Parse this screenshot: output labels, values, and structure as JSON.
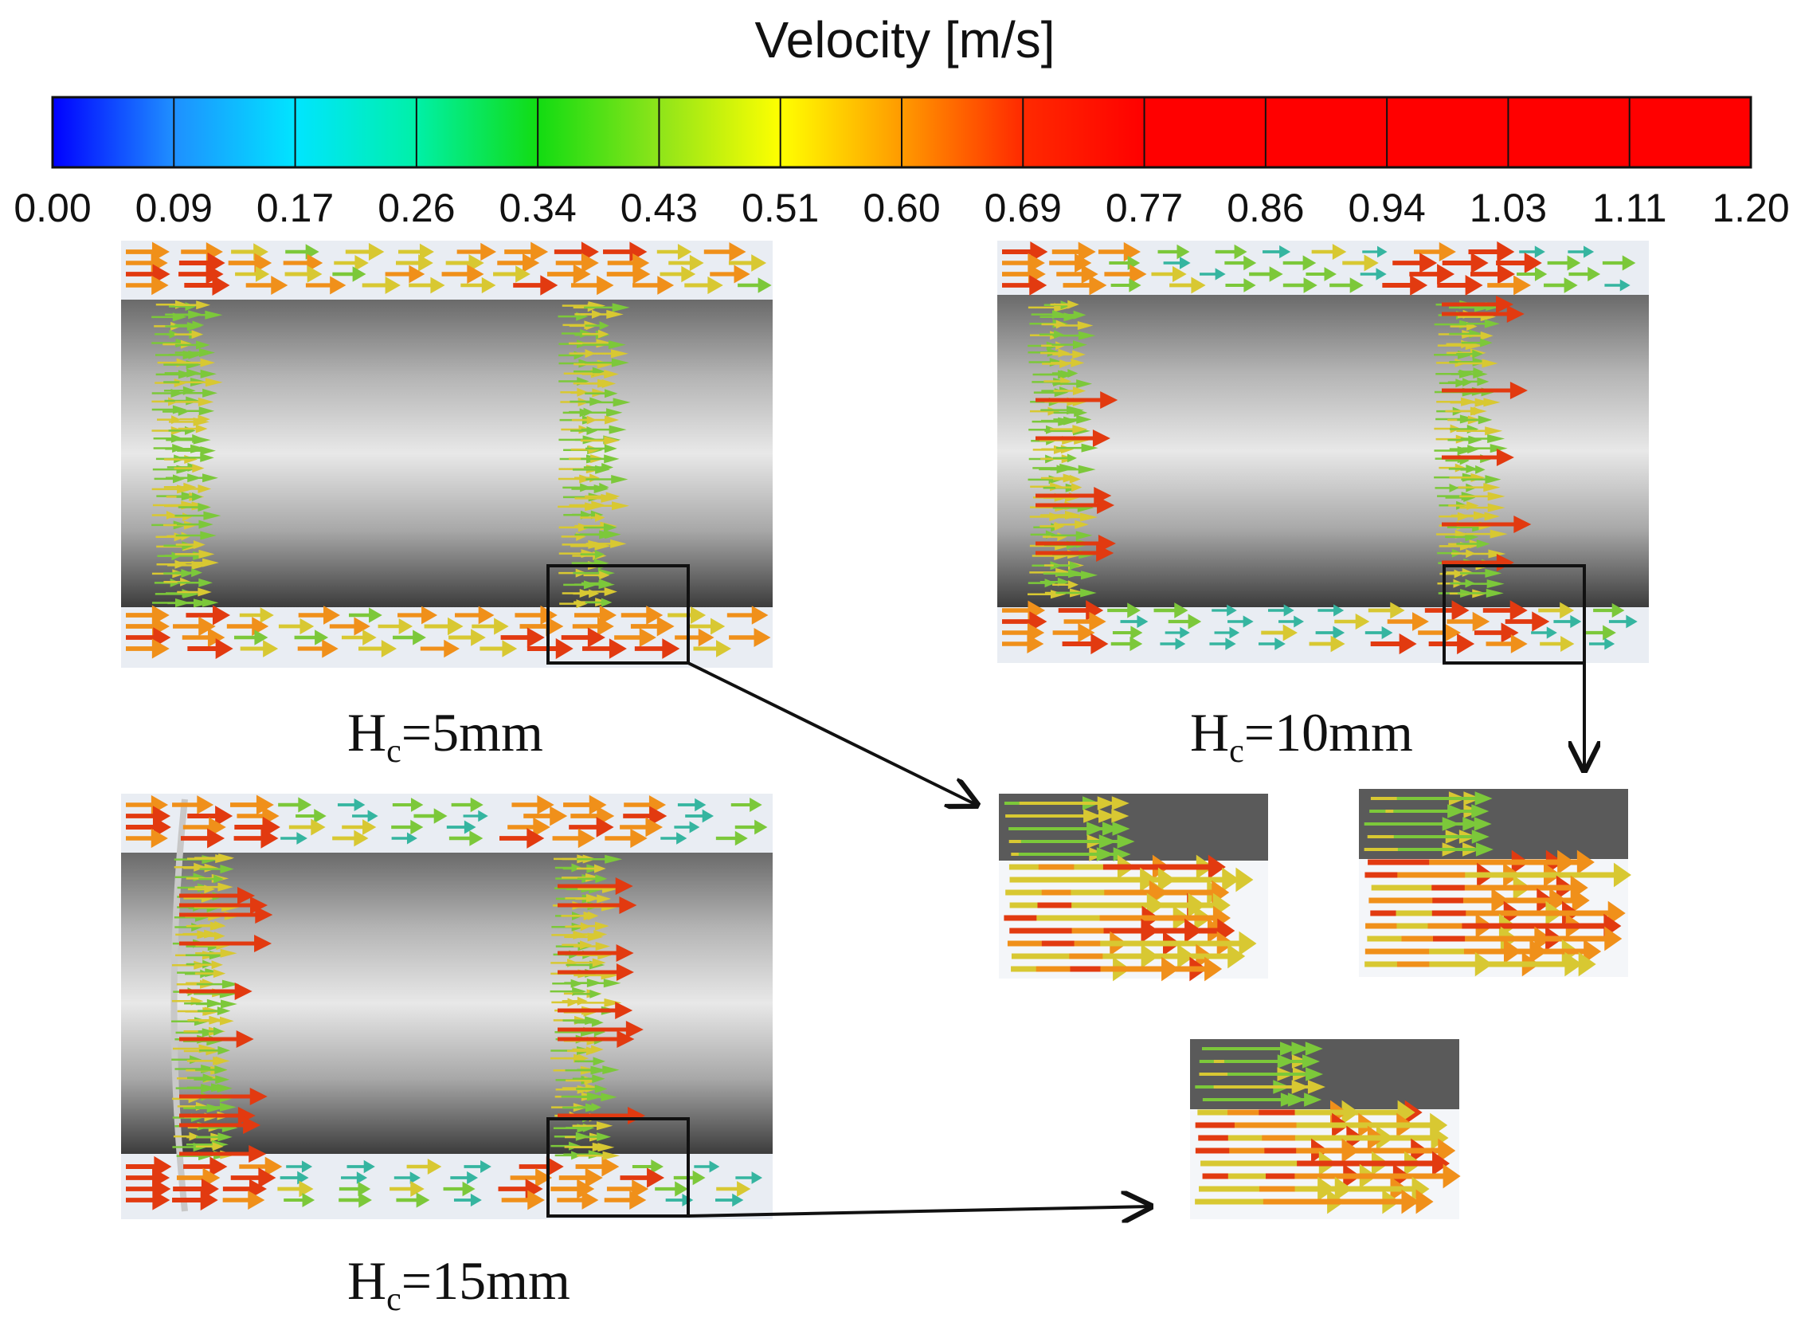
{
  "colorbar": {
    "title": "Velocity [m/s]",
    "min": 0.0,
    "max": 1.2,
    "ticks": [
      "0.00",
      "0.09",
      "0.17",
      "0.26",
      "0.34",
      "0.43",
      "0.51",
      "0.60",
      "0.69",
      "0.77",
      "0.86",
      "0.94",
      "1.03",
      "1.11",
      "1.20"
    ],
    "colors": [
      "#0000ff",
      "#1f8fff",
      "#00e5ff",
      "#00f0a8",
      "#12dc12",
      "#8ee41a",
      "#ffff00",
      "#ff9a00",
      "#ff2a00",
      "#ff0000",
      "#ff0000",
      "#ff0000",
      "#ff0000",
      "#ff0000"
    ]
  },
  "panels": [
    {
      "id": "hc5",
      "label_main": "H",
      "label_sub": "c",
      "label_value": "=5mm",
      "gap_mm": 5
    },
    {
      "id": "hc10",
      "label_main": "H",
      "label_sub": "c",
      "label_value": "=10mm",
      "gap_mm": 10
    },
    {
      "id": "hc15",
      "label_main": "H",
      "label_sub": "c",
      "label_value": "=15mm",
      "gap_mm": 15
    }
  ],
  "colors": {
    "cylinder_dark": "#4a4a4a",
    "cylinder_light": "#e6e6e6",
    "channel_bg": "#e9edf3",
    "arrow_red": "#e23a10",
    "arrow_orange": "#f0901a",
    "arrow_yellow": "#d8c832",
    "arrow_green": "#7cc83a",
    "arrow_teal": "#35b5a0",
    "arrow_blue": "#3a7fd0"
  }
}
